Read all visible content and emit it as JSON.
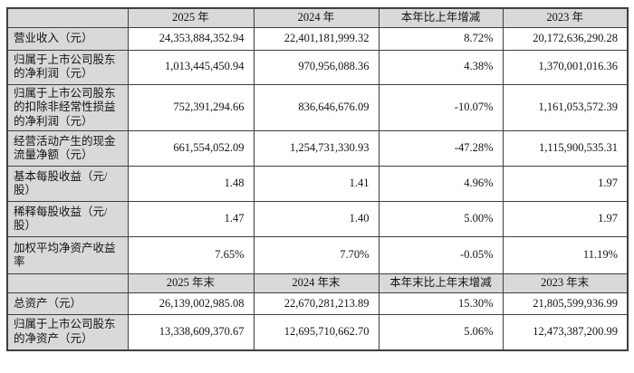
{
  "table": {
    "sections": [
      {
        "header": [
          "",
          "2025 年",
          "2024 年",
          "本年比上年增减",
          "2023 年"
        ],
        "rows": [
          {
            "label": "营业收入（元）",
            "values": [
              "24,353,884,352.94",
              "22,401,181,999.32",
              "8.72%",
              "20,172,636,290.28"
            ]
          },
          {
            "label": "归属于上市公司股东的净利润（元）",
            "values": [
              "1,013,445,450.94",
              "970,956,088.36",
              "4.38%",
              "1,370,001,016.36"
            ]
          },
          {
            "label": "归属于上市公司股东的扣除非经常性损益的净利润（元）",
            "values": [
              "752,391,294.66",
              "836,646,676.09",
              "-10.07%",
              "1,161,053,572.39"
            ]
          },
          {
            "label": "经营活动产生的现金流量净额（元）",
            "values": [
              "661,554,052.09",
              "1,254,731,330.93",
              "-47.28%",
              "1,115,900,535.31"
            ]
          },
          {
            "label": "基本每股收益（元/股）",
            "values": [
              "1.48",
              "1.41",
              "4.96%",
              "1.97"
            ]
          },
          {
            "label": "稀释每股收益（元/股）",
            "values": [
              "1.47",
              "1.40",
              "5.00%",
              "1.97"
            ]
          },
          {
            "label": "加权平均净资产收益率",
            "values": [
              "7.65%",
              "7.70%",
              "-0.05%",
              "11.19%"
            ]
          }
        ]
      },
      {
        "header": [
          "",
          "2025 年末",
          "2024 年末",
          "本年末比上年末增减",
          "2023 年末"
        ],
        "rows": [
          {
            "label": "总资产（元）",
            "values": [
              "26,139,002,985.08",
              "22,670,281,213.89",
              "15.30%",
              "21,805,599,936.99"
            ]
          },
          {
            "label": "归属于上市公司股东的净资产（元）",
            "values": [
              "13,338,609,370.67",
              "12,695,710,662.70",
              "5.06%",
              "12,473,387,200.99"
            ]
          }
        ]
      }
    ]
  },
  "colors": {
    "shade_bg": "#d9d9d9",
    "border": "#3f3f3f",
    "text": "#141414",
    "page_bg": "#ffffff"
  }
}
